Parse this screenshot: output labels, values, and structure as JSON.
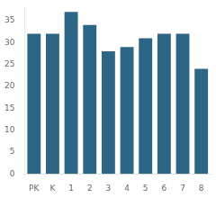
{
  "chart_data": {
    "type": "bar",
    "categories": [
      "PK",
      "K",
      "1",
      "2",
      "3",
      "4",
      "5",
      "6",
      "7",
      "8"
    ],
    "values": [
      32,
      32,
      37,
      34,
      28,
      29,
      31,
      32,
      32,
      24
    ],
    "color": "#2d6585",
    "ylim": [
      0,
      38
    ],
    "yticks": [
      0,
      5,
      10,
      15,
      20,
      25,
      30,
      35
    ],
    "grid": false
  }
}
